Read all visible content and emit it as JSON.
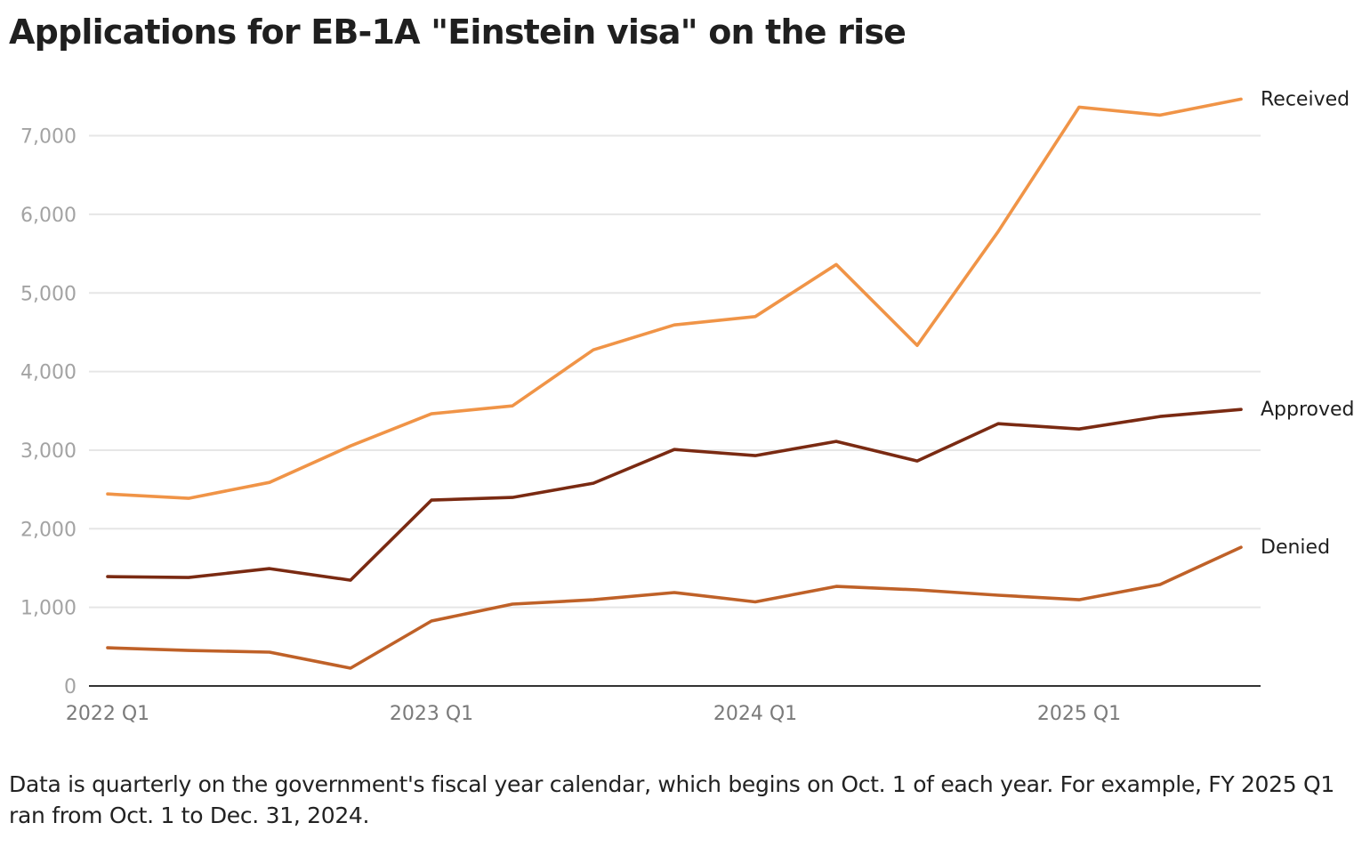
{
  "chart_data": {
    "type": "line",
    "title": "Applications for EB-1A \"Einstein visa\" on the rise",
    "xlabel": "",
    "ylabel": "",
    "x": [
      "2022 Q1",
      "2022 Q2",
      "2022 Q3",
      "2022 Q4",
      "2023 Q1",
      "2023 Q2",
      "2023 Q3",
      "2023 Q4",
      "2024 Q1",
      "2024 Q2",
      "2024 Q3",
      "2024 Q4",
      "2025 Q1",
      "2025 Q2",
      "2025 Q3"
    ],
    "x_tick_labels": [
      "2022 Q1",
      "2023 Q1",
      "2024 Q1",
      "2025 Q1"
    ],
    "x_tick_indices": [
      0,
      4,
      8,
      12
    ],
    "ylim": [
      0,
      7500
    ],
    "y_ticks": [
      0,
      1000,
      2000,
      3000,
      4000,
      5000,
      6000,
      7000
    ],
    "y_tick_labels": [
      "0",
      "1,000",
      "2,000",
      "3,000",
      "4,000",
      "5,000",
      "6,000",
      "7,000"
    ],
    "grid": true,
    "legend": "direct labels at line ends (right)",
    "series": [
      {
        "name": "Received",
        "color": "#F09447",
        "values": [
          2443,
          2387,
          2590,
          3054,
          3462,
          3563,
          4276,
          4593,
          4700,
          5362,
          4333,
          5780,
          7364,
          7262,
          7466
        ]
      },
      {
        "name": "Approved",
        "color": "#7A2A12",
        "values": [
          1391,
          1380,
          1493,
          1346,
          2364,
          2398,
          2579,
          3009,
          2930,
          3111,
          2862,
          3337,
          3269,
          3428,
          3518
        ]
      },
      {
        "name": "Denied",
        "color": "#BF6128",
        "values": [
          486,
          452,
          430,
          226,
          826,
          1041,
          1097,
          1188,
          1070,
          1267,
          1222,
          1154,
          1097,
          1290,
          1765
        ]
      }
    ]
  },
  "footnote": "Data is quarterly on the government's fiscal year calendar, which begins on Oct. 1 of each year. For example, FY 2025 Q1 ran from Oct. 1 to Dec. 31, 2024."
}
